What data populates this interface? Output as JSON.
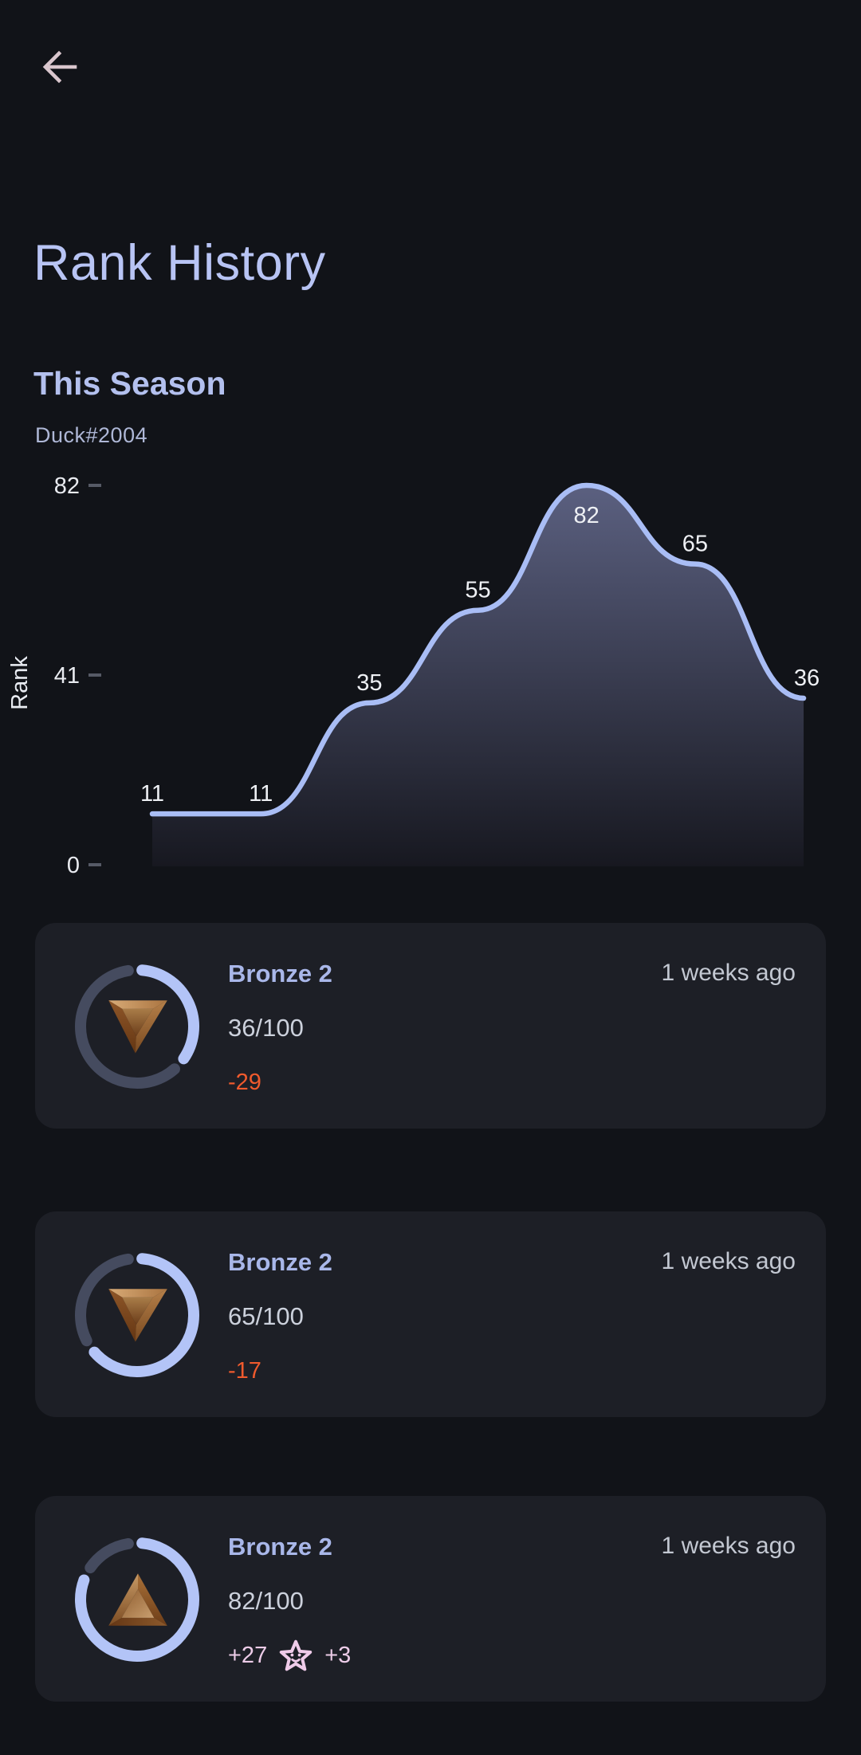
{
  "header": {
    "title": "Rank History",
    "back_icon": "arrow-left"
  },
  "season": {
    "heading": "This Season",
    "player_tag": "Duck#2004"
  },
  "chart_data": {
    "type": "area",
    "title": "",
    "xlabel": "",
    "ylabel": "Rank",
    "values": [
      11,
      11,
      35,
      55,
      82,
      65,
      36
    ],
    "point_labels": [
      "11",
      "11",
      "35",
      "55",
      "82",
      "65",
      "36"
    ],
    "yticks": [
      0,
      41,
      82
    ],
    "ylim": [
      0,
      82
    ],
    "grid": false,
    "legend": false,
    "line_color": "#a9bdf5",
    "area_top_color": "#5b6080",
    "area_bottom_color": "#171820",
    "label_color": "#eef0f4",
    "tick_label_color": "#e9ebf0",
    "tick_mark_color": "#565a66",
    "axis_label_color": "#e9ecf2"
  },
  "history": [
    {
      "rank": "Bronze 2",
      "progress_label": "36/100",
      "progress_value": 36,
      "progress_max": 100,
      "delta": "-29",
      "delta_type": "negative",
      "star_bonus": null,
      "time": "1 weeks ago",
      "trend": "down"
    },
    {
      "rank": "Bronze 2",
      "progress_label": "65/100",
      "progress_value": 65,
      "progress_max": 100,
      "delta": "-17",
      "delta_type": "negative",
      "star_bonus": null,
      "time": "1 weeks ago",
      "trend": "down"
    },
    {
      "rank": "Bronze 2",
      "progress_label": "82/100",
      "progress_value": 82,
      "progress_max": 100,
      "delta": "+27",
      "delta_type": "positive",
      "star_bonus": "+3",
      "time": "1 weeks ago",
      "trend": "up"
    }
  ],
  "colors": {
    "background": "#111318",
    "card_background": "#1d1f26",
    "accent_lavender": "#b8c4f4",
    "ring_progress": "#b3c4f7",
    "ring_track": "#454b5f",
    "negative": "#ef5a2d",
    "positive_pink": "#edcce8",
    "back_arrow": "#d9c6cd"
  }
}
